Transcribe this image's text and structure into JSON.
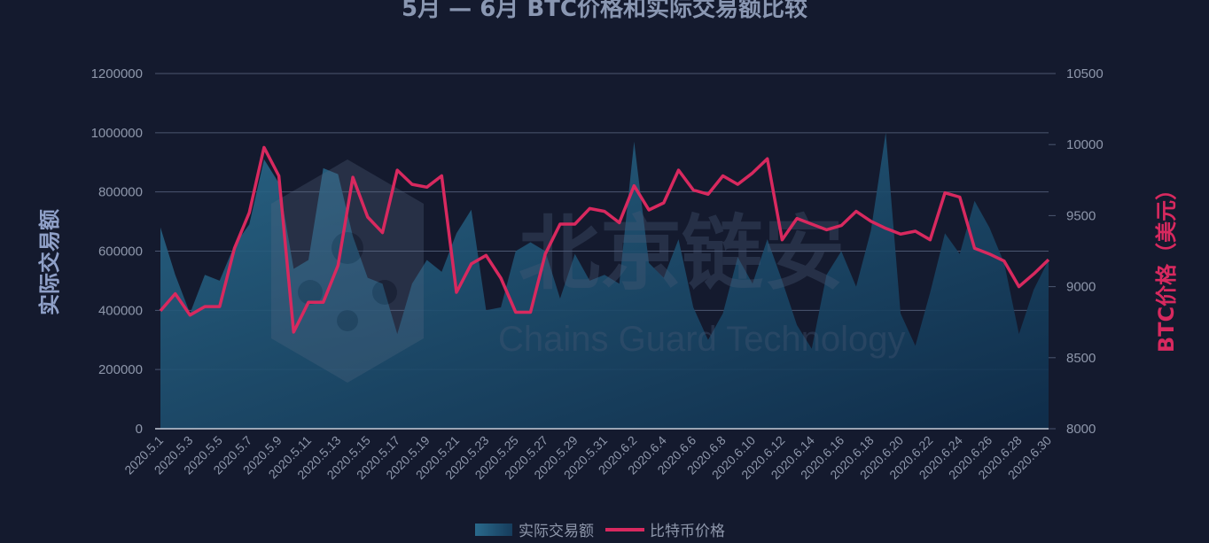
{
  "colors": {
    "background": "#141a2e",
    "grid": "#4b5670",
    "axis": "#c7ccd8",
    "area_top": "#2a6a8c",
    "area_bottom": "#0f2f4d",
    "line": "#d8295f",
    "right_label": "#d8295f",
    "left_label": "#8fa0c8",
    "tick": "#8e97ab"
  },
  "watermark": {
    "cn": "北京链安",
    "en": "Chains Guard Technology"
  },
  "chart_data": {
    "type": "area",
    "title": "5月 — 6月 BTC价格和实际交易额比较",
    "ylabel_left": "实际交易额",
    "ylabel_right": "BTC价格（美元）",
    "ylim_left": [
      0,
      1200000
    ],
    "ylim_right": [
      8000,
      10500
    ],
    "yticks_left": [
      "0",
      "200000",
      "400000",
      "600000",
      "800000",
      "1000000",
      "1200000"
    ],
    "yticks_right": [
      "8000",
      "8500",
      "9000",
      "9500",
      "10000",
      "10500"
    ],
    "grid": true,
    "legend_position": "bottom-center",
    "x": [
      "2020.5.1",
      "2020.5.2",
      "2020.5.3",
      "2020.5.4",
      "2020.5.5",
      "2020.5.6",
      "2020.5.7",
      "2020.5.8",
      "2020.5.9",
      "2020.5.10",
      "2020.5.11",
      "2020.5.12",
      "2020.5.13",
      "2020.5.14",
      "2020.5.15",
      "2020.5.16",
      "2020.5.17",
      "2020.5.18",
      "2020.5.19",
      "2020.5.20",
      "2020.5.21",
      "2020.5.22",
      "2020.5.23",
      "2020.5.24",
      "2020.5.25",
      "2020.5.26",
      "2020.5.27",
      "2020.5.28",
      "2020.5.29",
      "2020.5.30",
      "2020.5.31",
      "2020.6.1",
      "2020.6.2",
      "2020.6.3",
      "2020.6.4",
      "2020.6.5",
      "2020.6.6",
      "2020.6.7",
      "2020.6.8",
      "2020.6.9",
      "2020.6.10",
      "2020.6.11",
      "2020.6.12",
      "2020.6.13",
      "2020.6.14",
      "2020.6.15",
      "2020.6.16",
      "2020.6.17",
      "2020.6.18",
      "2020.6.19",
      "2020.6.20",
      "2020.6.21",
      "2020.6.22",
      "2020.6.23",
      "2020.6.24",
      "2020.6.25",
      "2020.6.26",
      "2020.6.27",
      "2020.6.28",
      "2020.6.29",
      "2020.6.30"
    ],
    "x_tick_labels": [
      "2020.5.1",
      "2020.5.3",
      "2020.5.5",
      "2020.5.7",
      "2020.5.9",
      "2020.5.11",
      "2020.5.13",
      "2020.5.15",
      "2020.5.17",
      "2020.5.19",
      "2020.5.21",
      "2020.5.23",
      "2020.5.25",
      "2020.5.27",
      "2020.5.29",
      "2020.5.31",
      "2020.6.2",
      "2020.6.4",
      "2020.6.6",
      "2020.6.8",
      "2020.6.10",
      "2020.6.12",
      "2020.6.14",
      "2020.6.16",
      "2020.6.18",
      "2020.6.20",
      "2020.6.22",
      "2020.6.24",
      "2020.6.26",
      "2020.6.28",
      "2020.6.30"
    ],
    "series": [
      {
        "name": "实际交易额",
        "type": "area",
        "axis": "left",
        "values": [
          680000,
          520000,
          390000,
          520000,
          500000,
          620000,
          690000,
          910000,
          830000,
          540000,
          570000,
          880000,
          860000,
          650000,
          510000,
          490000,
          320000,
          490000,
          570000,
          530000,
          660000,
          740000,
          400000,
          410000,
          600000,
          630000,
          600000,
          440000,
          590000,
          500000,
          520000,
          490000,
          970000,
          560000,
          510000,
          640000,
          410000,
          300000,
          390000,
          580000,
          490000,
          640000,
          500000,
          350000,
          270000,
          520000,
          600000,
          480000,
          670000,
          1000000,
          390000,
          280000,
          460000,
          660000,
          590000,
          770000,
          680000,
          560000,
          320000,
          470000,
          570000
        ]
      },
      {
        "name": "比特币价格",
        "type": "line",
        "axis": "right",
        "values": [
          8830,
          8950,
          8800,
          8860,
          8860,
          9270,
          9520,
          9980,
          9780,
          8680,
          8890,
          8890,
          9150,
          9770,
          9490,
          9380,
          9820,
          9720,
          9700,
          9780,
          8960,
          9160,
          9220,
          9060,
          8820,
          8820,
          9230,
          9440,
          9440,
          9550,
          9530,
          9450,
          9710,
          9540,
          9590,
          9820,
          9680,
          9650,
          9780,
          9720,
          9800,
          9900,
          9330,
          9480,
          9440,
          9400,
          9430,
          9530,
          9460,
          9410,
          9370,
          9390,
          9330,
          9660,
          9630,
          9270,
          9230,
          9180,
          9000,
          9090,
          9190
        ]
      }
    ]
  }
}
